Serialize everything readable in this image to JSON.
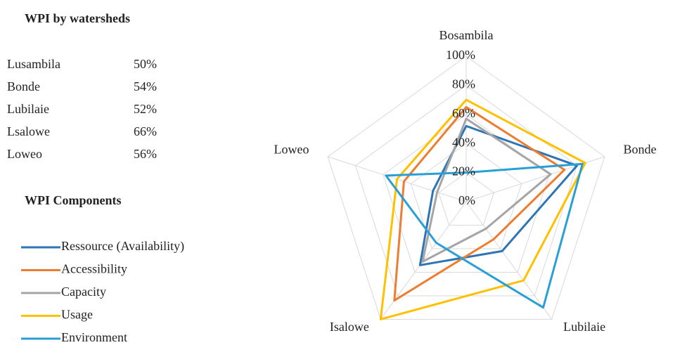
{
  "wpi_table": {
    "title": "WPI by watersheds",
    "rows": [
      [
        "Lusambila",
        "50%"
      ],
      [
        "Bonde",
        "54%"
      ],
      [
        "Lubilaie",
        "52%"
      ],
      [
        "Lsalowe",
        "66%"
      ],
      [
        "Loweo",
        "56%"
      ]
    ]
  },
  "chart_data": {
    "type": "radar",
    "legend_title": "WPI Components",
    "categories": [
      "Bosambila",
      "Bonde",
      "Lubilaie",
      "Isalowe",
      "Loweo"
    ],
    "rlim": [
      0,
      100
    ],
    "rticks": [
      {
        "value": 0,
        "label": "0%"
      },
      {
        "value": 20,
        "label": "20%"
      },
      {
        "value": 40,
        "label": "40%"
      },
      {
        "value": 60,
        "label": "60%"
      },
      {
        "value": 80,
        "label": "80%"
      },
      {
        "value": 100,
        "label": "100%"
      }
    ],
    "grid": true,
    "series": [
      {
        "name": "Ressource (Availability)",
        "color": "#2e75b6",
        "values": [
          52,
          80,
          42,
          54,
          24
        ]
      },
      {
        "name": "Accessibility",
        "color": "#ed7d31",
        "values": [
          65,
          71,
          32,
          84,
          45
        ]
      },
      {
        "name": "Capacity",
        "color": "#a5a5a5",
        "values": [
          57,
          61,
          23,
          51,
          21
        ]
      },
      {
        "name": "Usage",
        "color": "#ffc000",
        "values": [
          70,
          86,
          67,
          100,
          50
        ]
      },
      {
        "name": "Environment",
        "color": "#2a9fd6",
        "values": [
          20,
          84,
          90,
          35,
          58
        ]
      }
    ]
  }
}
